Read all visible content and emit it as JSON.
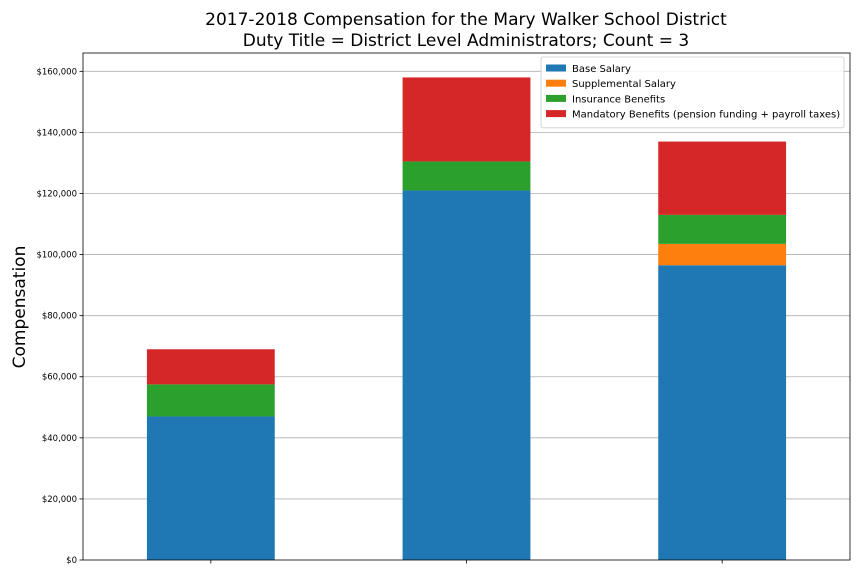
{
  "chart_data": {
    "type": "bar",
    "stacked": true,
    "title": "2017-2018 Compensation for the Mary Walker School District",
    "subtitle": "Duty Title = District Level Administrators; Count = 3",
    "xlabel": "",
    "ylabel": "Compensation",
    "ylim": [
      0,
      166000
    ],
    "yticks": [
      0,
      20000,
      40000,
      60000,
      80000,
      100000,
      120000,
      140000,
      160000
    ],
    "ytick_labels": [
      "$0",
      "$20,000",
      "$40,000",
      "$60,000",
      "$80,000",
      "$100,000",
      "$120,000",
      "$140,000",
      "$160,000"
    ],
    "categories": [
      "",
      "",
      ""
    ],
    "grid": "horizontal",
    "legend_position": "top-right",
    "series": [
      {
        "name": "Base Salary",
        "color": "#1f77b4",
        "values": [
          47000,
          121000,
          96500
        ]
      },
      {
        "name": "Supplemental Salary",
        "color": "#ff7f0e",
        "values": [
          0,
          0,
          7000
        ]
      },
      {
        "name": "Insurance Benefits",
        "color": "#2ca02c",
        "values": [
          10500,
          9500,
          9500
        ]
      },
      {
        "name": "Mandatory Benefits (pension funding + payroll taxes)",
        "color": "#d62728",
        "values": [
          11500,
          27500,
          24000
        ]
      }
    ]
  }
}
